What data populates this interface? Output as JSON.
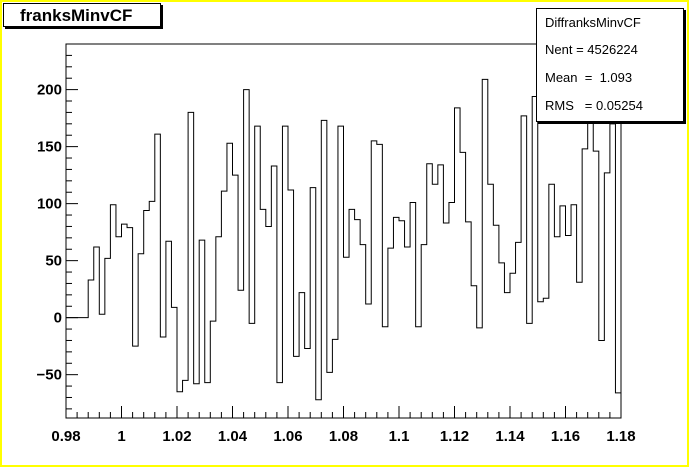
{
  "title": "franksMinvCF",
  "stats": {
    "name": "DiffranksMinvCF",
    "entries_label": "Nent = ",
    "entries": "4526224",
    "mean_label": "Mean  =  ",
    "mean": "1.093",
    "rms_label": "RMS   = ",
    "rms": "0.05254"
  },
  "colors": {
    "background": "#ffff00",
    "frame": "#ffffff",
    "line": "#000000"
  },
  "chart_data": {
    "type": "step",
    "title": "franksMinvCF",
    "xlabel": "",
    "ylabel": "",
    "xlim": [
      0.98,
      1.18
    ],
    "ylim": [
      -88,
      240
    ],
    "x_ticks": [
      0.98,
      1.0,
      1.02,
      1.04,
      1.06,
      1.08,
      1.1,
      1.12,
      1.14,
      1.16,
      1.18
    ],
    "x_tick_labels": [
      "0.98",
      "1",
      "1.02",
      "1.04",
      "1.06",
      "1.08",
      "1.1",
      "1.12",
      "1.14",
      "1.16",
      "1.18"
    ],
    "y_ticks": [
      -50,
      0,
      50,
      100,
      150,
      200
    ],
    "y_tick_labels": [
      "−50",
      "0",
      "50",
      "100",
      "150",
      "200"
    ],
    "bin_width": 0.002,
    "bin_edges_start": 0.98,
    "values": [
      0,
      0,
      0,
      0,
      33,
      62,
      3,
      52,
      99,
      71,
      82,
      79,
      -25,
      56,
      94,
      102,
      161,
      -17,
      67,
      9,
      -65,
      -55,
      180,
      -58,
      68,
      -57,
      -3,
      71,
      111,
      153,
      125,
      24,
      200,
      -5,
      168,
      95,
      80,
      133,
      -57,
      168,
      112,
      -34,
      22,
      -27,
      114,
      -72,
      173,
      -48,
      -19,
      168,
      53,
      95,
      86,
      64,
      12,
      155,
      152,
      -8,
      61,
      88,
      85,
      62,
      101,
      -8,
      64,
      135,
      117,
      134,
      83,
      101,
      184,
      145,
      84,
      28,
      -9,
      209,
      117,
      81,
      48,
      22,
      39,
      66,
      177,
      -5,
      194,
      14,
      17,
      117,
      71,
      98,
      72,
      99,
      31,
      148,
      190,
      146,
      -20,
      127,
      170,
      -66
    ]
  }
}
